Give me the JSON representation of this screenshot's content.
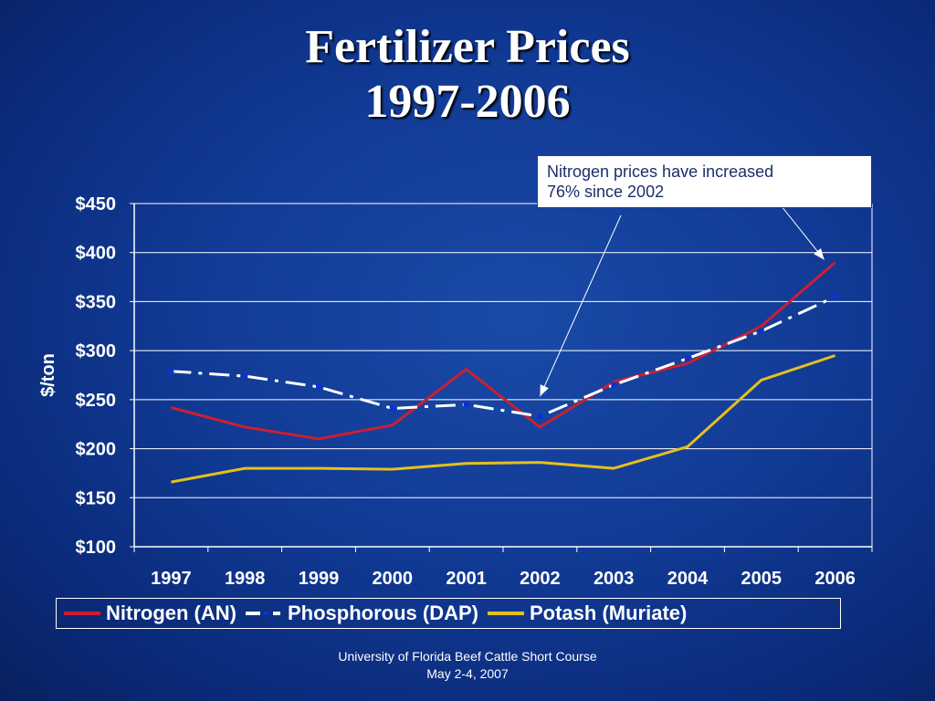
{
  "slide": {
    "title_line1": "Fertilizer Prices",
    "title_line2": "1997-2006",
    "footer_line1": "University of Florida Beef Cattle Short Course",
    "footer_line2": "May 2-4, 2007"
  },
  "callout": {
    "line1": "Nitrogen prices have increased",
    "line2": "76% since 2002"
  },
  "chart_data": {
    "type": "line",
    "title": "",
    "xlabel": "",
    "ylabel": "$/ton",
    "x": [
      "1997",
      "1998",
      "1999",
      "2000",
      "2001",
      "2002",
      "2003",
      "2004",
      "2005",
      "2006"
    ],
    "ylim": [
      100,
      450
    ],
    "y_ticks": [
      100,
      150,
      200,
      250,
      300,
      350,
      400,
      450
    ],
    "y_tick_labels": [
      "$100",
      "$150",
      "$200",
      "$250",
      "$300",
      "$350",
      "$400",
      "$450"
    ],
    "grid": true,
    "legend_position": "bottom",
    "series": [
      {
        "name": "Nitrogen (AN)",
        "color": "#cc1f2f",
        "style": "solid",
        "values": [
          242,
          222,
          210,
          224,
          281,
          222,
          268,
          287,
          325,
          390
        ]
      },
      {
        "name": "Phosphorous (DAP)",
        "color": "#ffffff",
        "style": "dash-dot",
        "values": [
          279,
          274,
          263,
          241,
          245,
          233,
          265,
          292,
          320,
          355
        ]
      },
      {
        "name": "Potash (Muriate)",
        "color": "#e5c01c",
        "style": "solid",
        "values": [
          166,
          180,
          180,
          179,
          185,
          186,
          180,
          202,
          270,
          295
        ]
      }
    ]
  }
}
